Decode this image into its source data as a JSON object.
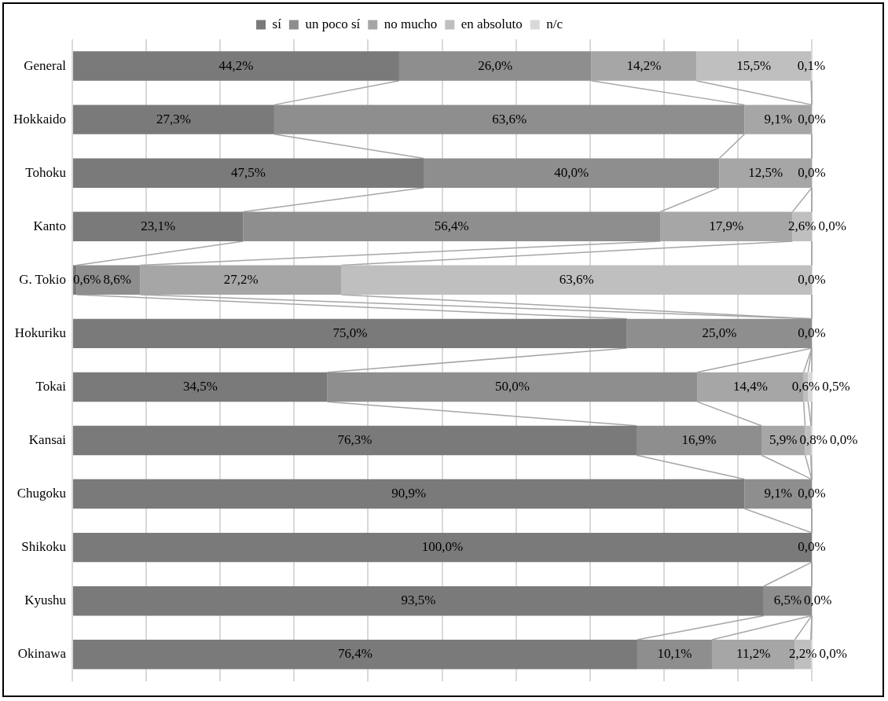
{
  "chart_data": {
    "type": "bar",
    "orientation": "horizontal",
    "stacked": true,
    "categories": [
      "General",
      "Hokkaido",
      "Tohoku",
      "Kanto",
      "G. Tokio",
      "Hokuriku",
      "Tokai",
      "Kansai",
      "Chugoku",
      "Shikoku",
      "Kyushu",
      "Okinawa"
    ],
    "series": [
      {
        "name": "sí",
        "color": "#7a7a7a",
        "values": [
          44.2,
          27.3,
          47.5,
          23.1,
          0.6,
          75.0,
          34.5,
          76.3,
          90.9,
          100.0,
          93.5,
          76.4
        ],
        "value_labels": [
          "44,2%",
          "27,3%",
          "47,5%",
          "23,1%",
          "0,6%",
          "75,0%",
          "34,5%",
          "76,3%",
          "90,9%",
          "100,0%",
          "93,5%",
          "76,4%"
        ]
      },
      {
        "name": "un poco sí",
        "color": "#8e8e8e",
        "values": [
          26.0,
          63.6,
          40.0,
          56.4,
          8.6,
          25.0,
          50.0,
          16.9,
          9.1,
          0.0,
          6.5,
          10.1
        ],
        "value_labels": [
          "26,0%",
          "63,6%",
          "40,0%",
          "56,4%",
          "8,6%",
          "25,0%",
          "50,0%",
          "16,9%",
          "9,1%",
          null,
          "6,5%",
          "10,1%"
        ]
      },
      {
        "name": "no mucho",
        "color": "#a6a6a6",
        "values": [
          14.2,
          9.1,
          12.5,
          17.9,
          27.2,
          0.0,
          14.4,
          5.9,
          0.0,
          0.0,
          0.0,
          11.2
        ],
        "value_labels": [
          "14,2%",
          "9,1%",
          "12,5%",
          "17,9%",
          "27,2%",
          null,
          "14,4%",
          "5,9%",
          null,
          null,
          null,
          "11,2%"
        ]
      },
      {
        "name": "en absoluto",
        "color": "#bfbfbf",
        "values": [
          15.5,
          0.0,
          0.0,
          2.6,
          63.6,
          0.0,
          0.6,
          0.8,
          0.0,
          0.0,
          0.0,
          2.2
        ],
        "value_labels": [
          "15,5%",
          null,
          null,
          "2,6%",
          "63,6%",
          null,
          "0,6%",
          "0,8%",
          null,
          null,
          null,
          "2,2%"
        ]
      },
      {
        "name": "n/c",
        "color": "#d9d9d9",
        "values": [
          0.1,
          0.0,
          0.0,
          0.0,
          0.0,
          0.0,
          0.5,
          0.0,
          0.0,
          0.0,
          0.0,
          0.0
        ],
        "value_labels": [
          "0,1%",
          "0,0%",
          "0,0%",
          "0,0%",
          "0,0%",
          "0,0%",
          "0,5%",
          "0,0%",
          "0,0%",
          "0,0%",
          "0,0%",
          "0,0%"
        ]
      }
    ],
    "tick_labels": "y",
    "grid": "x",
    "legend": "top"
  }
}
